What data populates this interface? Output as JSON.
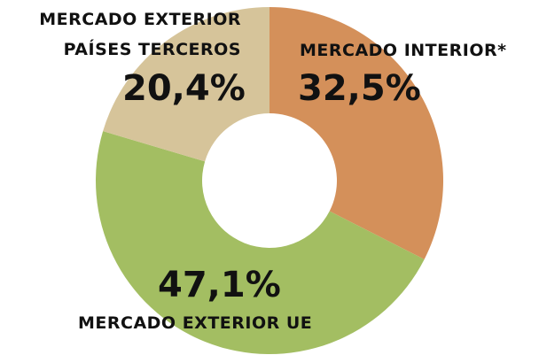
{
  "chart_data": {
    "type": "donut",
    "categories": [
      "MERCADO INTERIOR*",
      "MERCADO EXTERIOR UE",
      "MERCADO EXTERIOR\nPAÍSES TERCEROS"
    ],
    "values": [
      32.5,
      47.1,
      20.4
    ],
    "value_labels": [
      "32,5%",
      "47,1%",
      "20,4%"
    ],
    "colors": [
      "#d4905a",
      "#a3be62",
      "#d6c49a"
    ]
  }
}
